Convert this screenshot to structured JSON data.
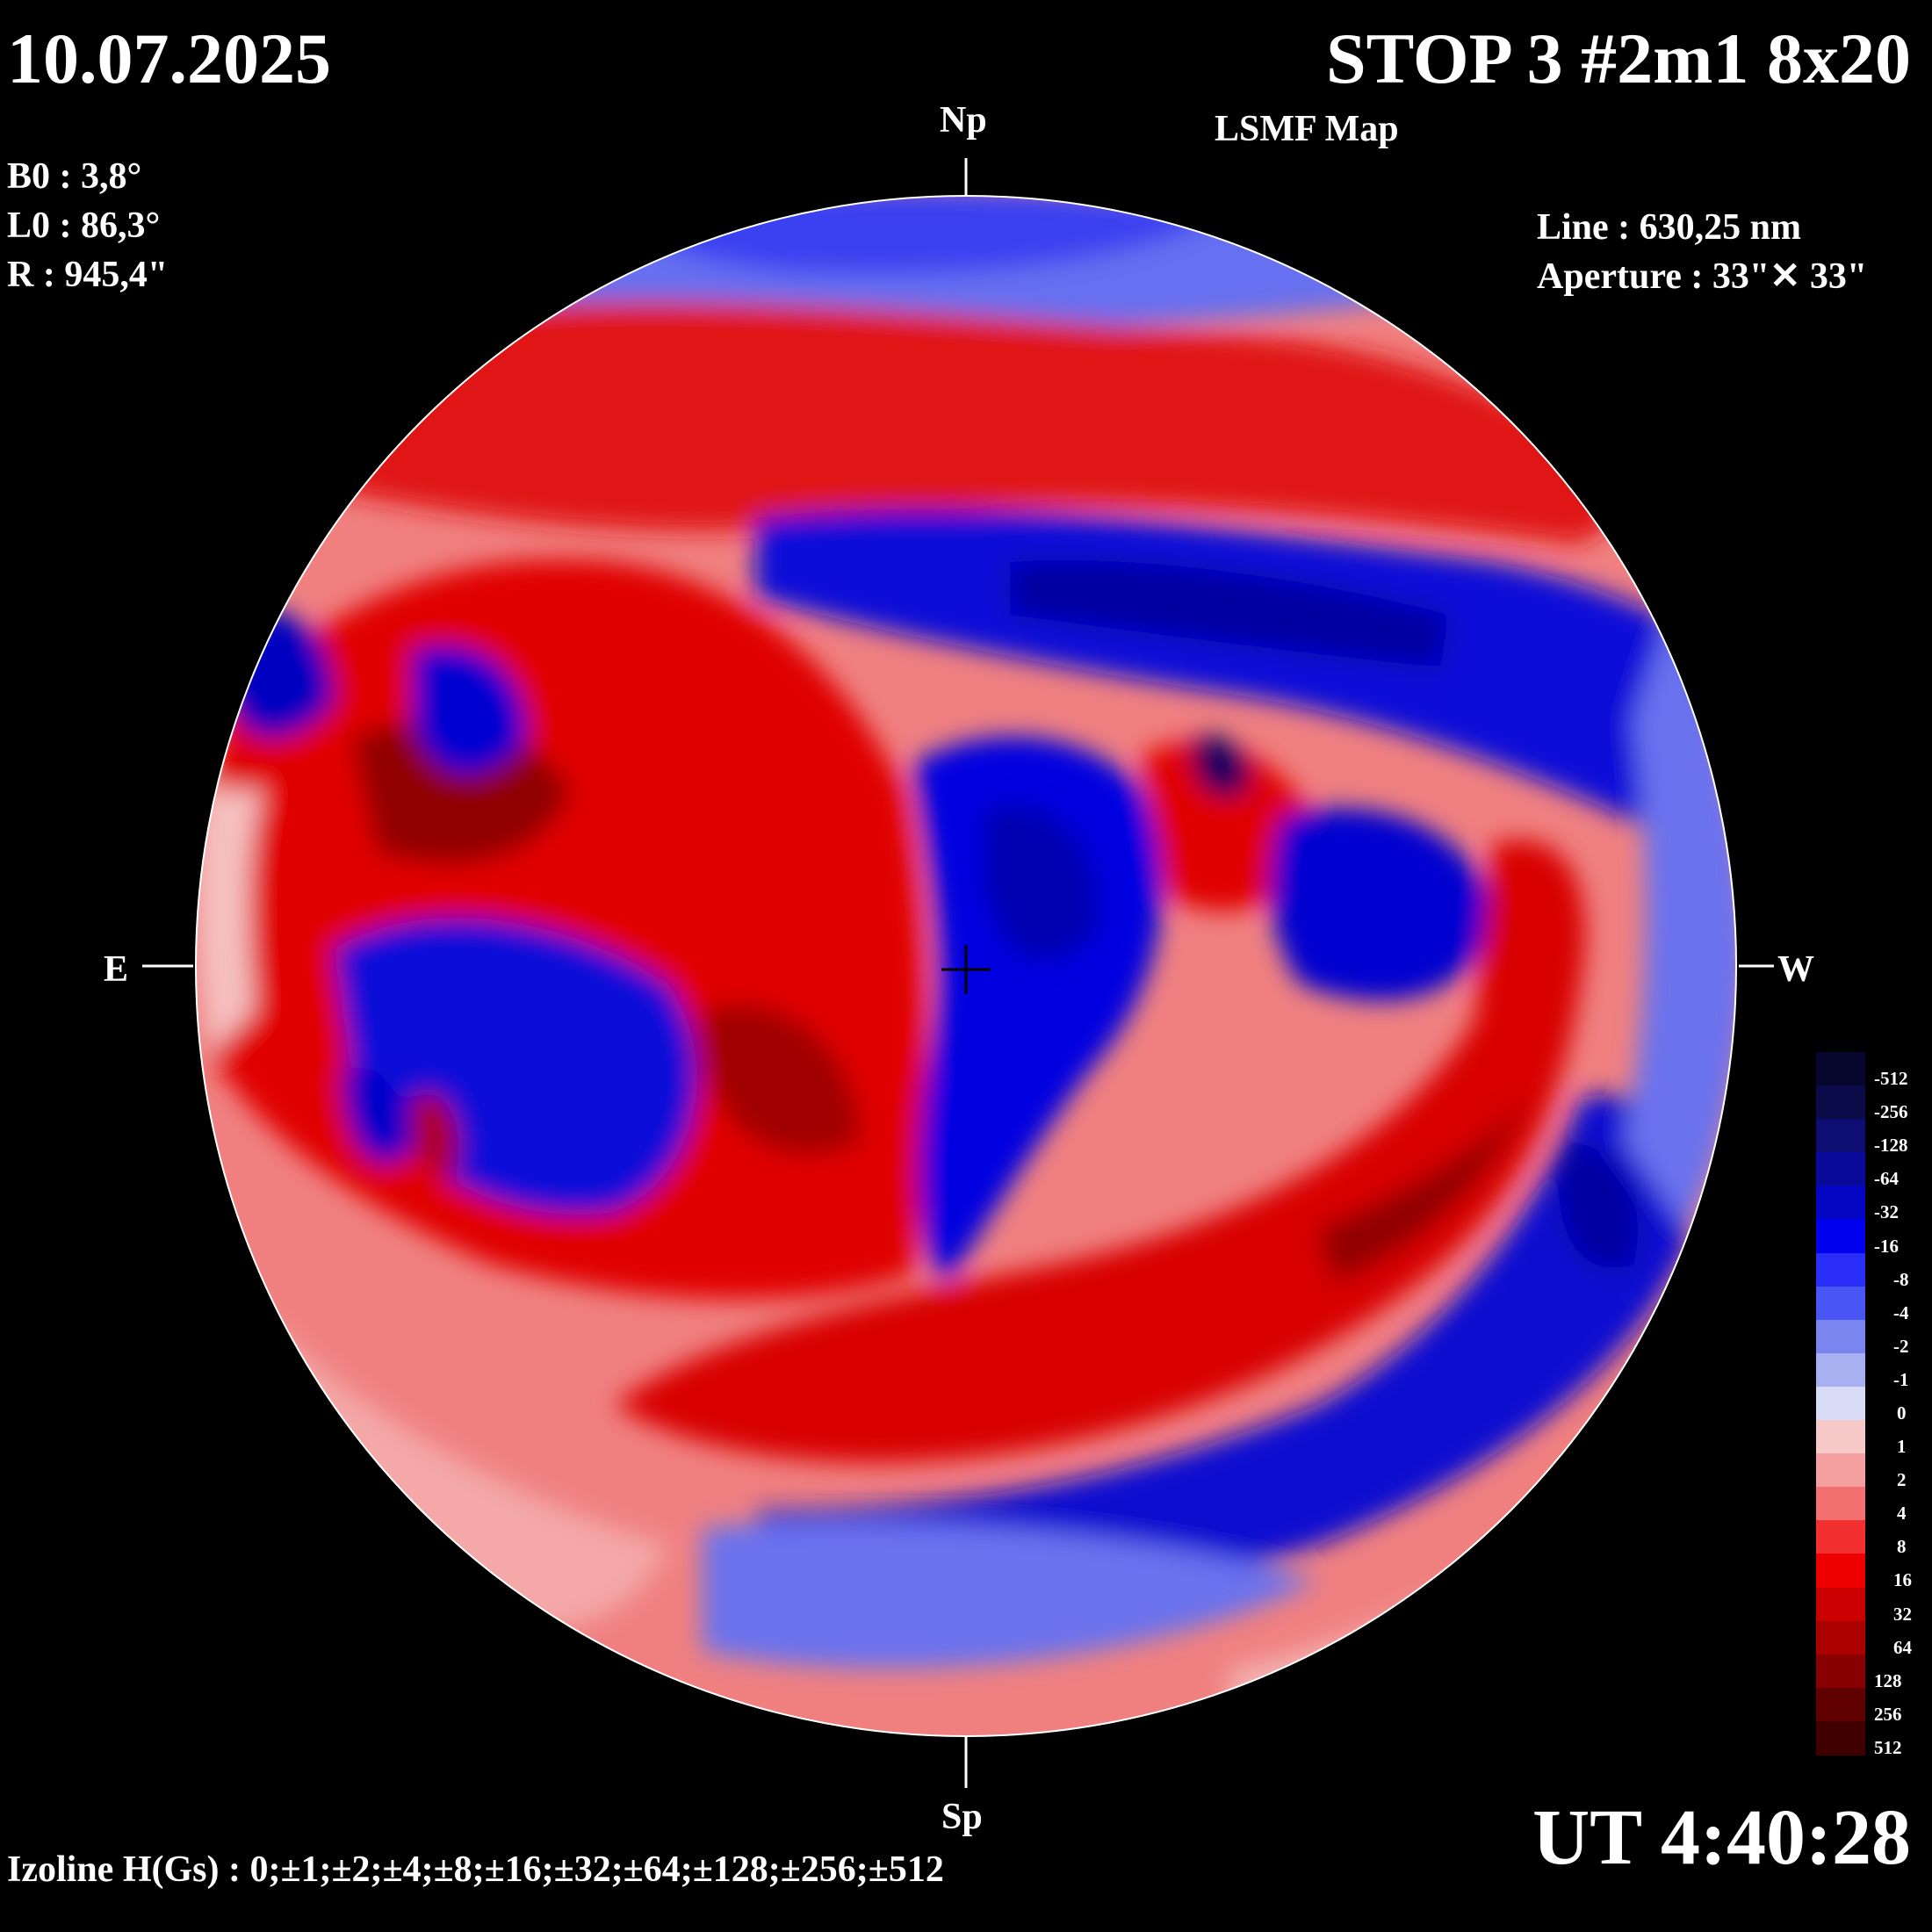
{
  "header": {
    "date": "10.07.2025",
    "title": "STOP 3 #2m1 8x20",
    "subtitle": "LSMF  Map"
  },
  "params": {
    "b0": "B0 : 3,8°",
    "l0": "L0 : 86,3°",
    "r": "R  : 945,4\""
  },
  "instrument": {
    "line": "Line :  630,25 nm",
    "aperture": "Aperture : 33\"✕ 33\""
  },
  "directions": {
    "north": "Np",
    "south": "Sp",
    "east": "E",
    "west": "W"
  },
  "time": "UT 4:40:28",
  "izoline": "Izoline H(Gs) : 0;±1;±2;±4;±8;±16;±32;±64;±128;±256;±512",
  "legend": {
    "levels": [
      "-512",
      "-256",
      "-128",
      "-64",
      "-32",
      "-16",
      "-8",
      "-4",
      "-2",
      "-1",
      "0",
      "1",
      "2",
      "4",
      "8",
      "16",
      "32",
      "64",
      "128",
      "256",
      "512"
    ],
    "colors": [
      "#07062e",
      "#0b0b4a",
      "#0d0d72",
      "#0a0a9a",
      "#0505c4",
      "#0000ee",
      "#2a2ef8",
      "#4a55f5",
      "#7a85f0",
      "#a9b0f2",
      "#d8dcf6",
      "#f6c8c8",
      "#f4a0a0",
      "#f27070",
      "#f23030",
      "#ee0000",
      "#cc0000",
      "#aa0000",
      "#880000",
      "#600000",
      "#400000"
    ]
  },
  "colors": {
    "positive": "#e80000",
    "negative": "#0000e6",
    "neutral_pos": "#f6c0c0",
    "neutral_neg": "#c8ccf4",
    "background": "#000000"
  }
}
